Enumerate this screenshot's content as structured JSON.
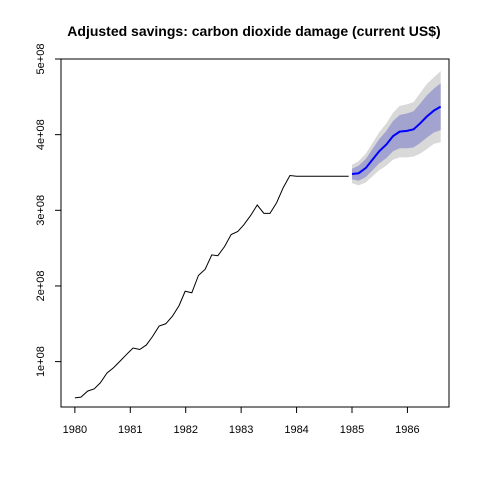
{
  "chart_data": {
    "type": "line",
    "title": "Adjusted savings: carbon dioxide damage (current US$)",
    "xlabel": "",
    "ylabel": "",
    "xlim": [
      1979.75,
      1986.75
    ],
    "ylim": [
      40000000,
      500000000
    ],
    "x_ticks": [
      1980,
      1981,
      1982,
      1983,
      1984,
      1985,
      1986
    ],
    "x_tick_labels": [
      "1980",
      "1981",
      "1982",
      "1983",
      "1984",
      "1985",
      "1986"
    ],
    "y_ticks": [
      100000000,
      200000000,
      300000000,
      400000000,
      500000000
    ],
    "y_tick_labels": [
      "1e+08",
      "2e+08",
      "3e+08",
      "4e+08",
      "5e+08"
    ],
    "grid": false,
    "colors": {
      "history": "#000000",
      "forecast": "#0000ff",
      "band_80": "#a3a3cf",
      "band_95": "#d9d9d9"
    },
    "series": [
      {
        "kind": "history",
        "x": [
          1980.0,
          1980.11,
          1980.23,
          1980.35,
          1980.46,
          1980.58,
          1980.7,
          1980.82,
          1980.94,
          1981.05,
          1981.17,
          1981.29,
          1981.4,
          1981.52,
          1981.64,
          1981.76,
          1981.88,
          1981.99,
          1982.11,
          1982.23,
          1982.35,
          1982.47,
          1982.58,
          1982.7,
          1982.82,
          1982.94,
          1983.05,
          1983.17,
          1983.29,
          1983.41,
          1983.52,
          1983.64,
          1983.76,
          1983.88,
          1984.0,
          1984.11,
          1984.23,
          1984.35,
          1984.46,
          1984.58,
          1984.7,
          1984.82,
          1984.94
        ],
        "y": [
          52000000,
          53000000,
          61000000,
          64000000,
          72000000,
          85000000,
          92000000,
          101000000,
          110000000,
          118000000,
          116000000,
          122000000,
          133000000,
          147000000,
          150000000,
          160000000,
          174000000,
          193000000,
          191000000,
          214000000,
          222000000,
          241000000,
          240000000,
          252000000,
          268000000,
          272000000,
          281000000,
          293000000,
          307000000,
          296000000,
          296000000,
          310000000,
          330000000,
          346000000,
          345000000,
          345000000,
          345000000,
          345000000,
          345000000,
          345000000,
          345000000,
          345000000,
          345000000
        ]
      },
      {
        "kind": "forecast",
        "x": [
          1985.0,
          1985.12,
          1985.25,
          1985.37,
          1985.49,
          1985.62,
          1985.74,
          1985.86,
          1985.99,
          1986.11,
          1986.23,
          1986.35,
          1986.48,
          1986.6
        ],
        "y": [
          348000000,
          349000000,
          356000000,
          367000000,
          378000000,
          387000000,
          398000000,
          404000000,
          405000000,
          407000000,
          415000000,
          424000000,
          432000000,
          437000000
        ],
        "lo80": [
          341000000,
          339000000,
          344000000,
          353000000,
          362000000,
          369000000,
          378000000,
          382000000,
          382000000,
          383000000,
          389000000,
          396000000,
          403000000,
          406000000
        ],
        "hi80": [
          355000000,
          359000000,
          368000000,
          381000000,
          394000000,
          405000000,
          418000000,
          426000000,
          428000000,
          431000000,
          441000000,
          452000000,
          461000000,
          468000000
        ],
        "lo95": [
          336000000,
          333000000,
          337000000,
          345000000,
          353000000,
          359000000,
          367000000,
          370000000,
          370000000,
          371000000,
          375000000,
          381000000,
          388000000,
          390000000
        ],
        "hi95": [
          360000000,
          365000000,
          375000000,
          389000000,
          403000000,
          415000000,
          429000000,
          438000000,
          440000000,
          443000000,
          455000000,
          467000000,
          476000000,
          484000000
        ]
      }
    ]
  }
}
